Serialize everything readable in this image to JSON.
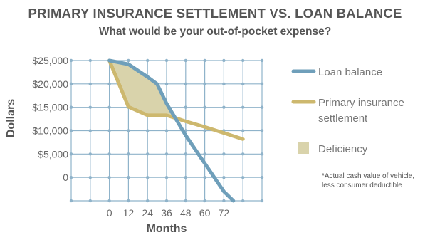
{
  "chart_data": {
    "type": "line",
    "title": "PRIMARY INSURANCE SETTLEMENT VS. LOAN BALANCE",
    "subtitle": "What would be your out-of-pocket expense?",
    "xlabel": "Months",
    "ylabel": "Dollars",
    "x_ticks": [
      "0",
      "12",
      "24",
      "36",
      "48",
      "60",
      "72"
    ],
    "y_ticks": [
      "$25,000",
      "$20,000",
      "$15,000",
      "$10,000",
      "$5,000",
      "0"
    ],
    "xlim": [
      -24,
      96
    ],
    "ylim": [
      -5000,
      25000
    ],
    "grid": true,
    "legend_position": "right",
    "series": [
      {
        "name": "Loan balance",
        "color": "#6f9fba",
        "x": [
          0,
          12,
          24,
          30,
          36,
          48,
          60,
          72,
          78
        ],
        "y": [
          25000,
          24200,
          21500,
          20000,
          15800,
          9000,
          3000,
          -3000,
          -5000
        ]
      },
      {
        "name": "Primary insurance settlement",
        "color": "#cdb86e",
        "x": [
          0,
          12,
          24,
          36,
          48,
          60,
          72,
          84
        ],
        "y": [
          25000,
          15100,
          13300,
          13300,
          12000,
          10800,
          9500,
          8200
        ]
      }
    ],
    "area": {
      "name": "Deficiency",
      "color": "#d9d3ab",
      "between": [
        "Loan balance",
        "Primary insurance settlement"
      ]
    },
    "legend": [
      {
        "label_lines": [
          "Loan balance"
        ],
        "kind": "line",
        "color": "#6f9fba"
      },
      {
        "label_lines": [
          "Primary insurance",
          "settlement"
        ],
        "kind": "line",
        "color": "#cdb86e"
      },
      {
        "label_lines": [
          "Deficiency"
        ],
        "kind": "box",
        "color": "#d9d3ab"
      }
    ],
    "note_lines": [
      "*Actual cash value of vehicle,",
      "less consumer deductible"
    ]
  },
  "colors": {
    "grid": "#8fb3ca",
    "text": "#555555"
  }
}
